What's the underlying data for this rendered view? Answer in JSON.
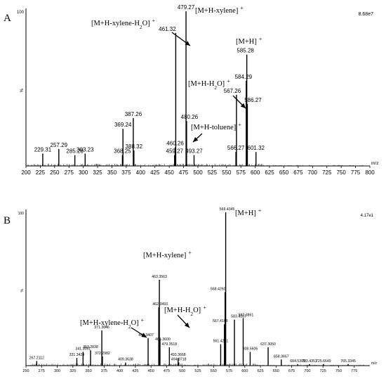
{
  "chart_data": [
    {
      "type": "bar",
      "panel_label": "A",
      "max_label": "8.68e7",
      "intensity_top_tick": "100",
      "intensity_mid_tick": "%",
      "x_unit_label": "m/z",
      "xlim": [
        200,
        800
      ],
      "ylim": [
        0,
        100
      ],
      "x_ticks": [
        200,
        225,
        250,
        275,
        300,
        325,
        350,
        375,
        400,
        425,
        450,
        475,
        500,
        525,
        550,
        575,
        600,
        625,
        650,
        675,
        700,
        725,
        750,
        775,
        800
      ],
      "peaks": [
        {
          "mz": 229.31,
          "rel": 8,
          "label": "229.31"
        },
        {
          "mz": 257.29,
          "rel": 11,
          "label": "257.29"
        },
        {
          "mz": 285.28,
          "rel": 7,
          "label": "285.28"
        },
        {
          "mz": 303.23,
          "rel": 8,
          "label": "303.23"
        },
        {
          "mz": 368.25,
          "rel": 7,
          "label": "368.25"
        },
        {
          "mz": 369.24,
          "rel": 24,
          "label": "369.24"
        },
        {
          "mz": 387.26,
          "rel": 31,
          "label": "387.26"
        },
        {
          "mz": 388.32,
          "rel": 10,
          "label": "388.32"
        },
        {
          "mz": 459.27,
          "rel": 7,
          "label": "459.27"
        },
        {
          "mz": 460.26,
          "rel": 12,
          "label": "460.26"
        },
        {
          "mz": 461.32,
          "rel": 86,
          "label": "461.32"
        },
        {
          "mz": 479.27,
          "rel": 100,
          "label": "479.27"
        },
        {
          "mz": 480.26,
          "rel": 29,
          "label": "480.26"
        },
        {
          "mz": 493.27,
          "rel": 7,
          "label": "493.27"
        },
        {
          "mz": 566.27,
          "rel": 9,
          "label": "566.27"
        },
        {
          "mz": 567.26,
          "rel": 46,
          "label": "567.26"
        },
        {
          "mz": 584.29,
          "rel": 55,
          "label": "584.29"
        },
        {
          "mz": 585.28,
          "rel": 72,
          "label": "585.28"
        },
        {
          "mz": 586.27,
          "rel": 40,
          "label": "586.27"
        },
        {
          "mz": 601.32,
          "rel": 9,
          "label": "601.32"
        }
      ],
      "annotations": [
        {
          "pre": "[M+H-xylene-H",
          "sub": "2",
          "post": "O]",
          "sup": "+"
        },
        {
          "pre": "[M+H-xylene]",
          "sub": "",
          "post": "",
          "sup": "+"
        },
        {
          "pre": "[M+H]",
          "sub": "",
          "post": "",
          "sup": "+"
        },
        {
          "pre": "[M+H-H",
          "sub": "2",
          "post": "O]",
          "sup": "+"
        },
        {
          "pre": "[M+H-toluene]",
          "sub": "",
          "post": "",
          "sup": "+"
        }
      ]
    },
    {
      "type": "bar",
      "panel_label": "B",
      "max_label": "4.17e1",
      "intensity_top_tick": "100",
      "intensity_mid_tick": "%",
      "x_unit_label": "m/z",
      "xlim": [
        250,
        800
      ],
      "ylim": [
        0,
        100
      ],
      "x_ticks": [
        250,
        275,
        300,
        325,
        350,
        375,
        400,
        425,
        450,
        475,
        500,
        525,
        550,
        575,
        600,
        625,
        650,
        675,
        700,
        725,
        750,
        775
      ],
      "peaks": [
        {
          "mz": 267.2112,
          "rel": 3,
          "label": "267.2112"
        },
        {
          "mz": 331.3424,
          "rel": 5,
          "label": "331.3424"
        },
        {
          "mz": 341.3051,
          "rel": 9,
          "label": "341.3051"
        },
        {
          "mz": 353.2838,
          "rel": 10,
          "label": "353.2838"
        },
        {
          "mz": 371.3046,
          "rel": 23,
          "label": "371.3046"
        },
        {
          "mz": 372.2982,
          "rel": 6,
          "label": "372.2982"
        },
        {
          "mz": 409.3638,
          "rel": 2,
          "label": "409.3638"
        },
        {
          "mz": 445.3407,
          "rel": 18,
          "label": "445.3407"
        },
        {
          "mz": 462.3493,
          "rel": 38,
          "label": "462.3493"
        },
        {
          "mz": 463.3563,
          "rel": 56,
          "label": "463.3563"
        },
        {
          "mz": 464.36,
          "rel": 17,
          "label": "464.3600"
        },
        {
          "mz": 479.3518,
          "rel": 12,
          "label": "479.3518"
        },
        {
          "mz": 493.3668,
          "rel": 5,
          "label": "493.3668"
        },
        {
          "mz": 494.3718,
          "rel": 2,
          "label": "494.3718"
        },
        {
          "mz": 561.4251,
          "rel": 14,
          "label": "561.4251"
        },
        {
          "mz": 567.4108,
          "rel": 27,
          "label": "567.4108"
        },
        {
          "mz": 568.426,
          "rel": 48,
          "label": "568.4260"
        },
        {
          "mz": 569.4345,
          "rel": 100,
          "label": "569.4345"
        },
        {
          "mz": 583.4287,
          "rel": 30,
          "label": "583.4287"
        },
        {
          "mz": 597.3861,
          "rel": 31,
          "label": "597.3861"
        },
        {
          "mz": 608.5606,
          "rel": 9,
          "label": "608.5606"
        },
        {
          "mz": 637.305,
          "rel": 12,
          "label": "637.3050"
        },
        {
          "mz": 658.3667,
          "rel": 4,
          "label": "658.3667"
        },
        {
          "mz": 684.5309,
          "rel": 1,
          "label": "684.5309"
        },
        {
          "mz": 703.4351,
          "rel": 1,
          "label": "703.4351"
        },
        {
          "mz": 725.6649,
          "rel": 1,
          "label": "725.6649"
        },
        {
          "mz": 765.3345,
          "rel": 1,
          "label": "765.3345"
        }
      ],
      "annotations": [
        {
          "pre": "[M+H]",
          "sub": "",
          "post": "",
          "sup": "+"
        },
        {
          "pre": "[M+H-xylene]",
          "sub": "",
          "post": "",
          "sup": "+"
        },
        {
          "pre": "[M+H-xylene-H",
          "sub": "2",
          "post": "O]",
          "sup": "+"
        },
        {
          "pre": "[M+H-H",
          "sub": "2",
          "post": "O]",
          "sup": "+"
        }
      ]
    }
  ]
}
